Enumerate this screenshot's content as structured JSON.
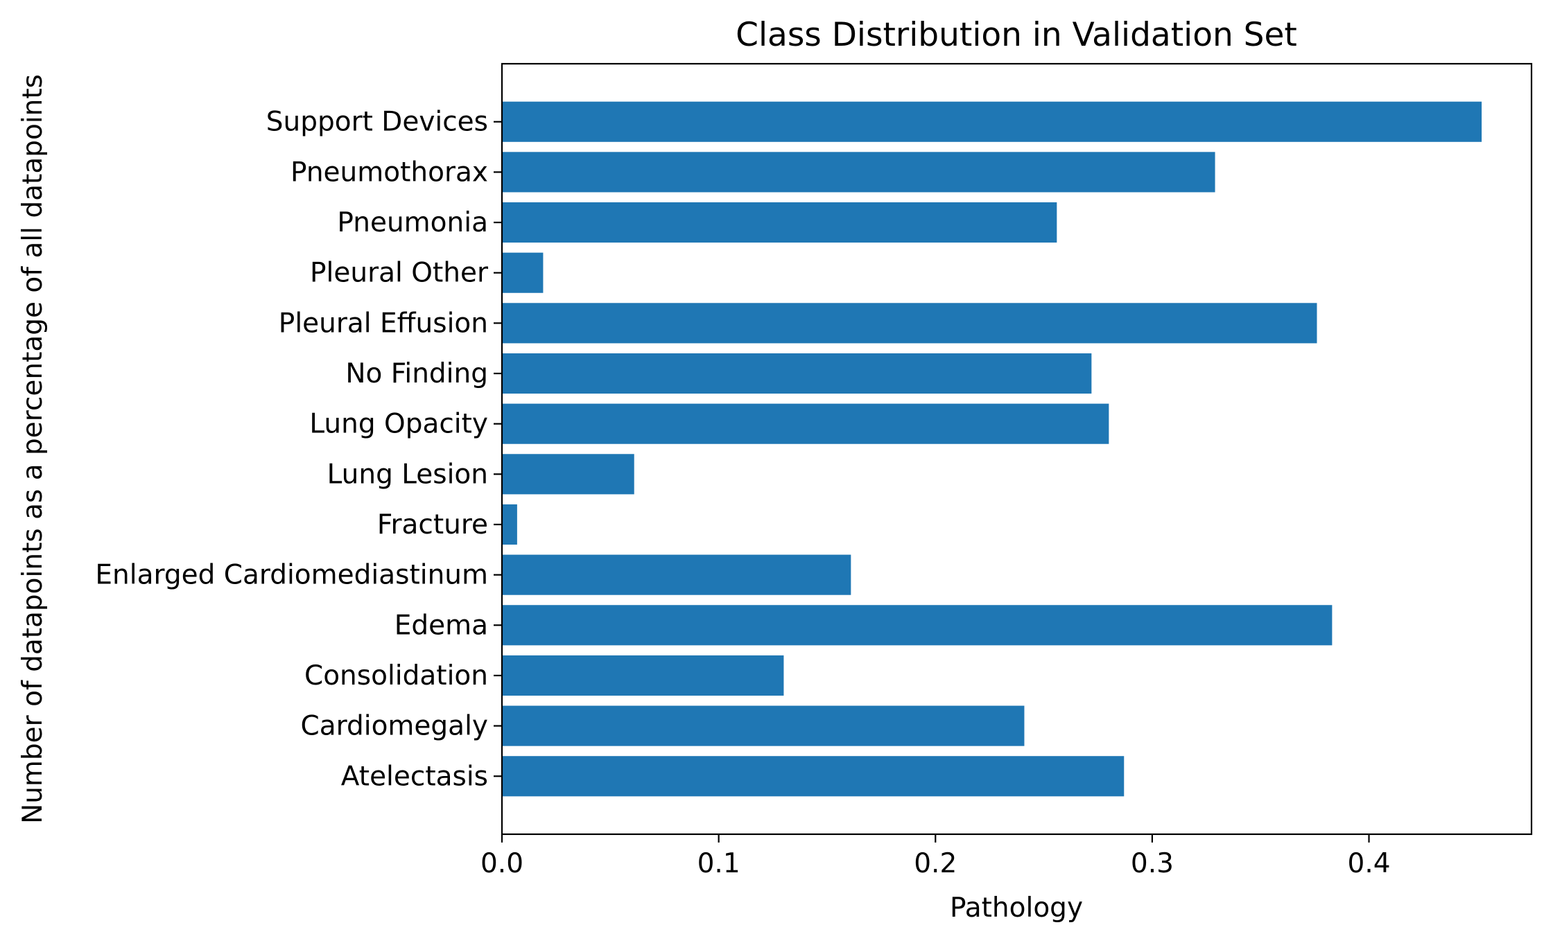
{
  "chart_data": {
    "type": "bar",
    "orientation": "horizontal",
    "title": "Class Distribution in Validation Set",
    "xlabel": "Pathology",
    "ylabel": "Number of datapoints as a percentage of all datapoints",
    "categories": [
      "Atelectasis",
      "Cardiomegaly",
      "Consolidation",
      "Edema",
      "Enlarged Cardiomediastinum",
      "Fracture",
      "Lung Lesion",
      "Lung Opacity",
      "No Finding",
      "Pleural Effusion",
      "Pleural Other",
      "Pneumonia",
      "Pneumothorax",
      "Support Devices"
    ],
    "values": [
      0.287,
      0.241,
      0.13,
      0.383,
      0.161,
      0.007,
      0.061,
      0.28,
      0.272,
      0.376,
      0.019,
      0.256,
      0.329,
      0.452
    ],
    "xlim": [
      0,
      0.475
    ],
    "xticks": [
      0.0,
      0.1,
      0.2,
      0.3,
      0.4
    ],
    "xtick_labels": [
      "0.0",
      "0.1",
      "0.2",
      "0.3",
      "0.4"
    ],
    "bar_color": "#1f77b4",
    "grid": false,
    "legend": "none"
  }
}
